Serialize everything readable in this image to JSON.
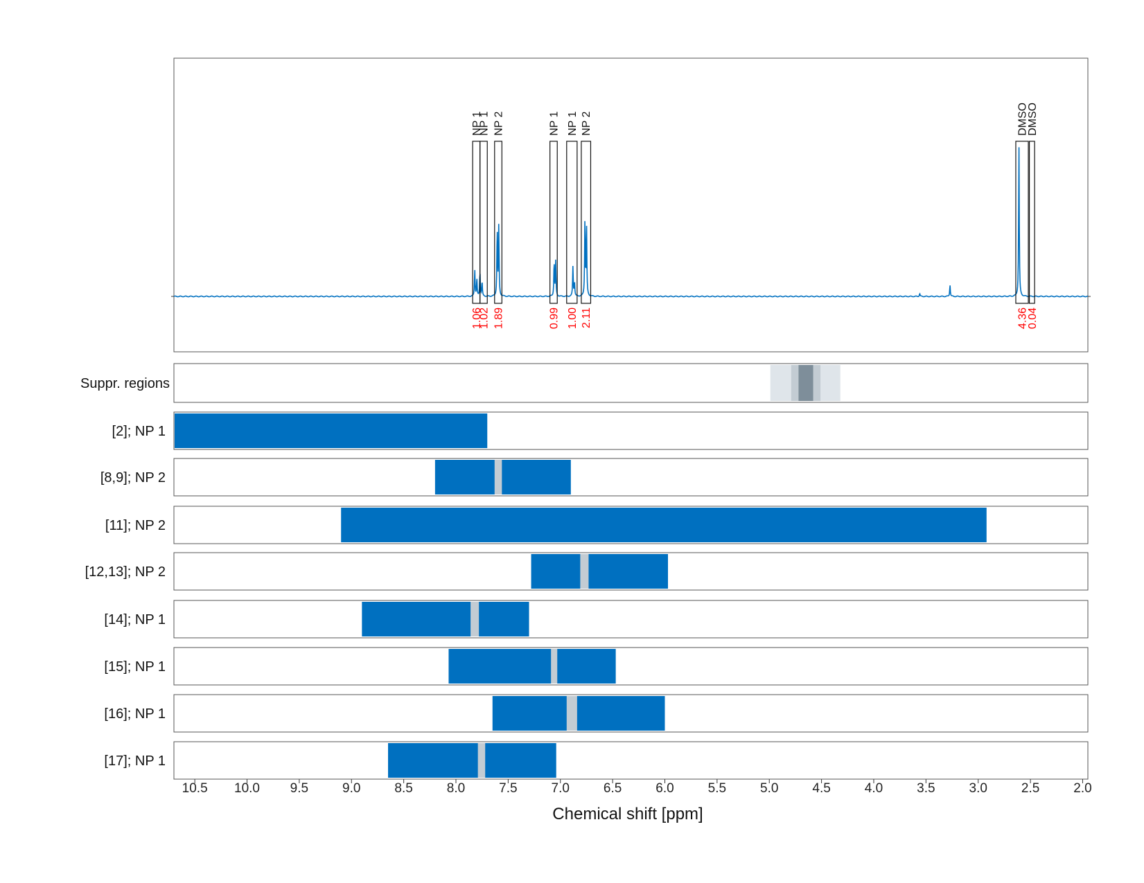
{
  "chart_data": {
    "type": "line",
    "xlabel": "Chemical shift [ppm]",
    "x_reversed": true,
    "xlim": [
      10.7,
      1.95
    ],
    "x_ticks": [
      "10.5",
      "10.0",
      "9.5",
      "9.0",
      "8.5",
      "8.0",
      "7.5",
      "7.0",
      "6.5",
      "6.0",
      "5.5",
      "5.0",
      "4.5",
      "4.0",
      "3.5",
      "3.0",
      "2.5",
      "2.0"
    ],
    "grid": "vertical dashed",
    "spectrum": {
      "color": "#0070c0",
      "baseline_fraction": 0.0,
      "peaks": [
        {
          "ppm": 7.82,
          "height": 0.11
        },
        {
          "ppm": 7.8,
          "height": 0.07
        },
        {
          "ppm": 7.77,
          "height": 0.1
        },
        {
          "ppm": 7.75,
          "height": 0.06
        },
        {
          "ppm": 7.605,
          "height": 0.27
        },
        {
          "ppm": 7.59,
          "height": 0.28
        },
        {
          "ppm": 7.06,
          "height": 0.14
        },
        {
          "ppm": 7.045,
          "height": 0.14
        },
        {
          "ppm": 6.88,
          "height": 0.12
        },
        {
          "ppm": 6.865,
          "height": 0.06
        },
        {
          "ppm": 6.765,
          "height": 0.31
        },
        {
          "ppm": 6.75,
          "height": 0.29
        },
        {
          "ppm": 3.56,
          "height": 0.012
        },
        {
          "ppm": 3.27,
          "height": 0.048
        },
        {
          "ppm": 2.61,
          "height": 0.61
        }
      ]
    },
    "peak_regions": [
      {
        "label": "NP 1",
        "from": 7.84,
        "to": 7.77,
        "integral": "1.06"
      },
      {
        "label": "NP 1",
        "from": 7.77,
        "to": 7.7,
        "integral": "1.02"
      },
      {
        "label": "NP 2",
        "from": 7.63,
        "to": 7.56,
        "integral": "1.89"
      },
      {
        "label": "NP 1",
        "from": 7.1,
        "to": 7.03,
        "integral": "0.99"
      },
      {
        "label": "NP 1",
        "from": 6.94,
        "to": 6.84,
        "integral": "1.00"
      },
      {
        "label": "NP 2",
        "from": 6.8,
        "to": 6.71,
        "integral": "2.11"
      },
      {
        "label": "DMSO",
        "from": 2.64,
        "to": 2.52,
        "integral": "4.36"
      },
      {
        "label": "DMSO",
        "from": 2.51,
        "to": 2.46,
        "integral": "0.04"
      }
    ],
    "suppression_row": {
      "label": "Suppr. regions",
      "bands": [
        {
          "from": 4.99,
          "to": 4.32,
          "color": "#dfe5ea"
        },
        {
          "from": 4.79,
          "to": 4.51,
          "color": "#c3ccd3"
        },
        {
          "from": 4.72,
          "to": 4.58,
          "color": "#7e8e9a"
        }
      ]
    },
    "range_rows": [
      {
        "label": "[2]; NP 1",
        "from": 10.7,
        "to": 7.7,
        "gaps": []
      },
      {
        "label": "[8,9]; NP 2",
        "from": 8.2,
        "to": 6.9,
        "gaps": [
          [
            7.63,
            7.56
          ]
        ]
      },
      {
        "label": "[11]; NP 2",
        "from": 9.1,
        "to": 2.92,
        "gaps": []
      },
      {
        "label": "[12,13]; NP 2",
        "from": 7.28,
        "to": 5.97,
        "gaps": [
          [
            6.81,
            6.73
          ]
        ]
      },
      {
        "label": "[14]; NP 1",
        "from": 8.9,
        "to": 7.3,
        "gaps": [
          [
            7.86,
            7.78
          ]
        ]
      },
      {
        "label": "[15]; NP 1",
        "from": 8.07,
        "to": 6.47,
        "gaps": [
          [
            7.09,
            7.03
          ]
        ]
      },
      {
        "label": "[16]; NP 1",
        "from": 7.65,
        "to": 6.0,
        "gaps": [
          [
            6.94,
            6.84
          ]
        ]
      },
      {
        "label": "[17]; NP 1",
        "from": 8.65,
        "to": 7.04,
        "gaps": [
          [
            7.79,
            7.72
          ]
        ]
      }
    ],
    "colors": {
      "range": "#0070c0",
      "gap": "#c3ccd3",
      "integral": "#ff0000",
      "frame": "#555555",
      "grid": "#aaaaaa"
    }
  }
}
